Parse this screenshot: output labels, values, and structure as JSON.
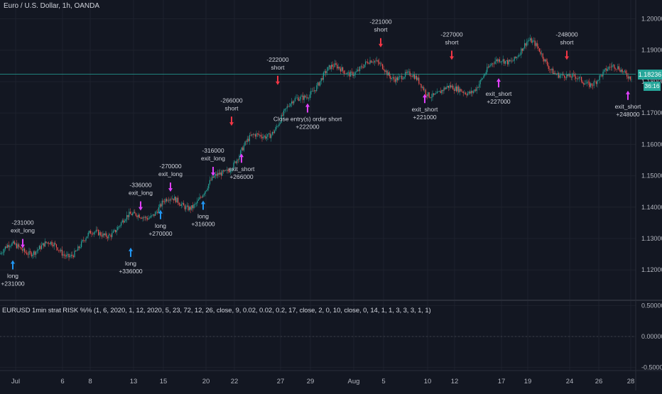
{
  "header": {
    "title": "Euro / U.S. Dollar, 1h, OANDA"
  },
  "study": {
    "label": "EURUSD 1min strat RISK %% (1, 6, 2020, 1, 12, 2020, 5, 23, 72, 12, 26, close, 9, 0.02, 0.02, 0.2, 17, close, 2, 0, 10, close, 0, 14, 1, 1, 3, 3, 3, 1, 1)"
  },
  "badges": {
    "price": "1.18236",
    "countdown": "36:16"
  },
  "colors": {
    "background": "#131722",
    "grid": "#1e222d",
    "up": "#26a69a",
    "down": "#ef5350",
    "long": "#2196f3",
    "short": "#f23645",
    "exit": "#e040fb",
    "priceline": "#26a69a"
  },
  "chart_data": [
    {
      "type": "candlestick",
      "series_name": "Euro / U.S. Dollar",
      "x_ticks": [
        "Jul",
        "6",
        "8",
        "13",
        "15",
        "20",
        "22",
        "27",
        "29",
        "Aug",
        "5",
        "10",
        "12",
        "17",
        "19",
        "24",
        "26",
        "28"
      ],
      "ylim": [
        1.111,
        1.206
      ],
      "y_ticks": [
        "1.12000",
        "1.13000",
        "1.14000",
        "1.15000",
        "1.16000",
        "1.17000",
        "1.18000",
        "1.19000",
        "1.20000"
      ],
      "last_price": 1.18236,
      "path": [
        [
          "Jul",
          1.125
        ],
        [
          "6",
          1.127
        ],
        [
          "8",
          1.131
        ],
        [
          "13",
          1.134
        ],
        [
          "15",
          1.142
        ],
        [
          "20",
          1.144
        ],
        [
          "22",
          1.154
        ],
        [
          "27",
          1.17
        ],
        [
          "29",
          1.178
        ],
        [
          "Aug",
          1.184
        ],
        [
          "5",
          1.187
        ],
        [
          "10",
          1.176
        ],
        [
          "12",
          1.175
        ],
        [
          "17",
          1.188
        ],
        [
          "19",
          1.19
        ],
        [
          "24",
          1.18
        ],
        [
          "26",
          1.184
        ],
        [
          "28",
          1.182
        ]
      ],
      "grid": true,
      "trades": [
        {
          "x": "Jul",
          "price": 1.124,
          "signal": "long",
          "label": "long",
          "amount": "+231000",
          "dir": "up"
        },
        {
          "x": "Jul",
          "price": 1.126,
          "signal": "exit",
          "label": "exit_long",
          "amount": "-231000",
          "dir": "down"
        },
        {
          "x": "13",
          "price": 1.128,
          "signal": "long",
          "label": "long",
          "amount": "+336000",
          "dir": "up"
        },
        {
          "x": "13",
          "price": 1.138,
          "signal": "exit",
          "label": "exit_long",
          "amount": "-336000",
          "dir": "down"
        },
        {
          "x": "15",
          "price": 1.14,
          "signal": "long",
          "label": "long",
          "amount": "+270000",
          "dir": "up"
        },
        {
          "x": "15",
          "price": 1.144,
          "signal": "exit",
          "label": "exit_long",
          "amount": "-270000",
          "dir": "down"
        },
        {
          "x": "20",
          "price": 1.143,
          "signal": "long",
          "label": "long",
          "amount": "+316000",
          "dir": "up"
        },
        {
          "x": "20",
          "price": 1.149,
          "signal": "exit",
          "label": "exit_long",
          "amount": "-316000",
          "dir": "down"
        },
        {
          "x": "22",
          "price": 1.165,
          "signal": "short",
          "label": "short",
          "amount": "-266000",
          "dir": "down"
        },
        {
          "x": "22",
          "price": 1.158,
          "signal": "exit",
          "label": "exit_short",
          "amount": "+266000",
          "dir": "up"
        },
        {
          "x": "27",
          "price": 1.178,
          "signal": "short",
          "label": "short",
          "amount": "-222000",
          "dir": "down"
        },
        {
          "x": "29",
          "price": 1.174,
          "signal": "exit",
          "label": "Close entry(s) order short",
          "amount": "+222000",
          "dir": "up"
        },
        {
          "x": "5",
          "price": 1.19,
          "signal": "short",
          "label": "short",
          "amount": "-221000",
          "dir": "down"
        },
        {
          "x": "10",
          "price": 1.177,
          "signal": "exit",
          "label": "exit_short",
          "amount": "+221000",
          "dir": "up"
        },
        {
          "x": "12",
          "price": 1.186,
          "signal": "short",
          "label": "short",
          "amount": "-227000",
          "dir": "down"
        },
        {
          "x": "17",
          "price": 1.182,
          "signal": "exit",
          "label": "exit_short",
          "amount": "+227000",
          "dir": "up"
        },
        {
          "x": "24",
          "price": 1.186,
          "signal": "short",
          "label": "short",
          "amount": "-248000",
          "dir": "down"
        },
        {
          "x": "28",
          "price": 1.178,
          "signal": "exit",
          "label": "exit_short",
          "amount": "+248000",
          "dir": "up"
        }
      ]
    },
    {
      "type": "line",
      "series_name": "EURUSD 1min strat RISK %%",
      "ylim": [
        -0.55,
        0.55
      ],
      "y_ticks": [
        "0.50000",
        "0.00000",
        "-0.50000"
      ],
      "values": [
        0.0
      ]
    }
  ]
}
